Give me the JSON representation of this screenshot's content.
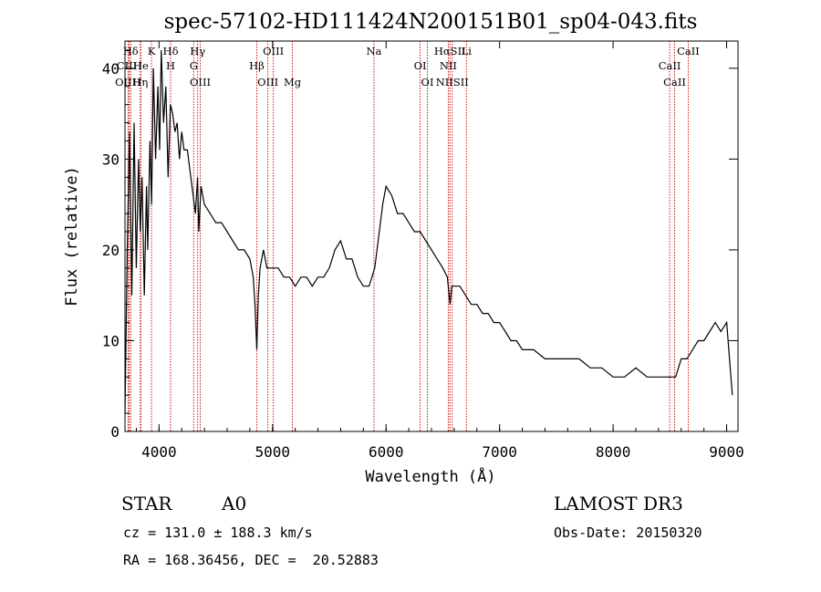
{
  "chart_data": {
    "type": "line",
    "title": "spec-57102-HD111424N200151B01_sp04-043.fits",
    "xlabel": "Wavelength (Å)",
    "ylabel": "Flux (relative)",
    "xlim": [
      3700,
      9100
    ],
    "ylim": [
      0,
      43
    ],
    "xticks": [
      4000,
      5000,
      6000,
      7000,
      8000,
      9000
    ],
    "yticks": [
      0,
      10,
      20,
      30,
      40
    ],
    "grid": false,
    "series": [
      {
        "x": [
          3700,
          3720,
          3740,
          3760,
          3780,
          3800,
          3820,
          3835,
          3850,
          3870,
          3890,
          3900,
          3920,
          3935,
          3950,
          3970,
          3990,
          4005,
          4020,
          4040,
          4060,
          4080,
          4100,
          4120,
          4140,
          4160,
          4180,
          4200,
          4220,
          4250,
          4280,
          4300,
          4320,
          4340,
          4350,
          4370,
          4400,
          4450,
          4500,
          4550,
          4600,
          4650,
          4700,
          4750,
          4800,
          4830,
          4845,
          4861,
          4875,
          4890,
          4920,
          4950,
          5000,
          5050,
          5100,
          5150,
          5200,
          5250,
          5300,
          5350,
          5400,
          5450,
          5500,
          5550,
          5600,
          5650,
          5700,
          5750,
          5800,
          5850,
          5900,
          5940,
          5970,
          6000,
          6050,
          6100,
          6150,
          6200,
          6250,
          6300,
          6350,
          6400,
          6450,
          6500,
          6540,
          6563,
          6580,
          6600,
          6650,
          6700,
          6750,
          6800,
          6850,
          6900,
          6950,
          7000,
          7050,
          7100,
          7150,
          7200,
          7300,
          7400,
          7500,
          7600,
          7700,
          7800,
          7900,
          8000,
          8100,
          8200,
          8300,
          8400,
          8500,
          8550,
          8600,
          8650,
          8700,
          8750,
          8800,
          8850,
          8900,
          8950,
          9000,
          9050
        ],
        "y": [
          2,
          20,
          33,
          15,
          34,
          18,
          30,
          22,
          28,
          15,
          27,
          20,
          32,
          25,
          40,
          30,
          38,
          31,
          42,
          34,
          38,
          28,
          36,
          35,
          33,
          34,
          30,
          33,
          31,
          31,
          28,
          26,
          24,
          28,
          22,
          27,
          25,
          24,
          23,
          23,
          22,
          21,
          20,
          20,
          19,
          17,
          14,
          9,
          15,
          18,
          20,
          18,
          18,
          18,
          17,
          17,
          16,
          17,
          17,
          16,
          17,
          17,
          18,
          20,
          21,
          19,
          19,
          17,
          16,
          16,
          18,
          22,
          25,
          27,
          26,
          24,
          24,
          23,
          22,
          22,
          21,
          20,
          19,
          18,
          17,
          14,
          16,
          16,
          16,
          15,
          14,
          14,
          13,
          13,
          12,
          12,
          11,
          10,
          10,
          9,
          9,
          8,
          8,
          8,
          8,
          7,
          7,
          6,
          6,
          7,
          6,
          6,
          6,
          6,
          8,
          8,
          9,
          10,
          10,
          11,
          12,
          11,
          12,
          4
        ]
      }
    ],
    "line_markers": [
      {
        "label": "Hδ",
        "x": 3750
      },
      {
        "label": "CIIH",
        "x": 3738
      },
      {
        "label": "OIIH",
        "x": 3727
      },
      {
        "label": "K",
        "x": 3934
      },
      {
        "label": "He",
        "x": 3840
      },
      {
        "label": "Hη",
        "x": 3835
      },
      {
        "label": "Hδ",
        "x": 4102
      },
      {
        "label": "H",
        "x": 4102
      },
      {
        "label": "OIII",
        "x": 4363
      },
      {
        "label": "Hγ",
        "x": 4340
      },
      {
        "label": "G",
        "x": 4305
      },
      {
        "label": "OIII",
        "x": 4959
      },
      {
        "label": "OIII",
        "x": 5007
      },
      {
        "label": "Hβ",
        "x": 4861
      },
      {
        "label": "Mg",
        "x": 5175
      },
      {
        "label": "Na",
        "x": 5893
      },
      {
        "label": "OI",
        "x": 6300
      },
      {
        "label": "OI",
        "x": 6364
      },
      {
        "label": "HαSII",
        "x": 6563
      },
      {
        "label": "NII",
        "x": 6548
      },
      {
        "label": "NIISII",
        "x": 6583
      },
      {
        "label": "Li",
        "x": 6708
      },
      {
        "label": "CaII",
        "x": 8498
      },
      {
        "label": "CaII",
        "x": 8542
      },
      {
        "label": "CaII",
        "x": 8662
      }
    ]
  },
  "info": {
    "class": "STAR",
    "subclass": "A0",
    "survey": "LAMOST DR3",
    "cz": "cz = 131.0 ± 188.3 km/s",
    "obs_date": "Obs-Date: 20150320",
    "coords": "RA = 168.36456, DEC =  20.52883"
  },
  "colors": {
    "marker_line": "#cc0000",
    "spectrum": "#000000"
  }
}
